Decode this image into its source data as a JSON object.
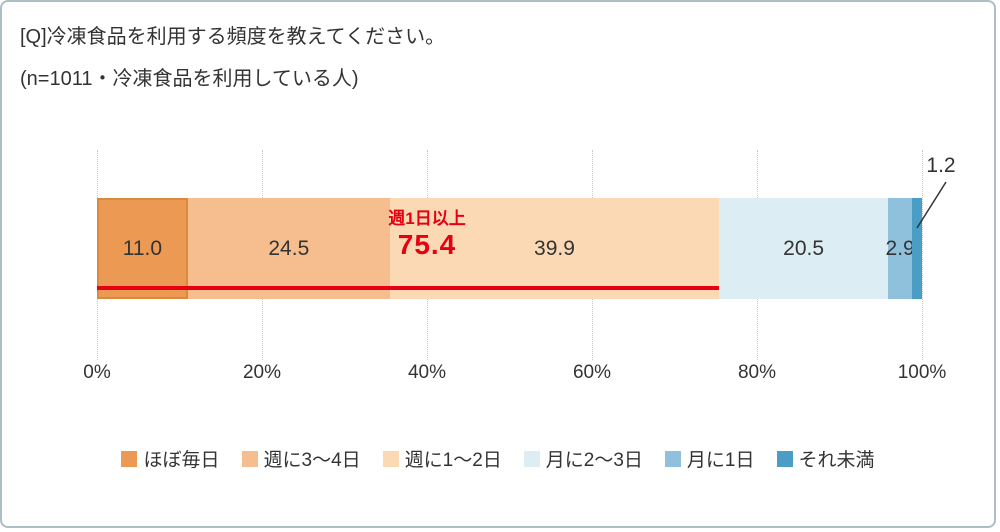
{
  "page": {
    "title": "[Q]冷凍食品を利用する頻度を教えてください。",
    "subtitle": "(n=1011・冷凍食品を利用している人)"
  },
  "chart_data": {
    "type": "bar",
    "orientation": "horizontal-stacked",
    "title": "[Q]冷凍食品を利用する頻度を教えてください。",
    "subtitle": "(n=1011・冷凍食品を利用している人)",
    "categories": [
      "ほぼ毎日",
      "週に3〜4日",
      "週に1〜2日",
      "月に2〜3日",
      "月に1日",
      "それ未満"
    ],
    "values": [
      11.0,
      24.5,
      39.9,
      20.5,
      2.9,
      1.2
    ],
    "labels": [
      "11.0",
      "24.5",
      "39.9",
      "20.5",
      "2.9",
      "1.2"
    ],
    "colors": [
      "#ec9a53",
      "#f6be8e",
      "#fbd9b5",
      "#dcedf4",
      "#8fc1dc",
      "#4a9ec5"
    ],
    "x_ticks": [
      "0%",
      "20%",
      "40%",
      "60%",
      "80%",
      "100%"
    ],
    "xlim": [
      0,
      100
    ],
    "grid": "dotted-vertical",
    "legend_position": "bottom",
    "annotation": {
      "label": "週1日以上",
      "value": "75.4",
      "span_percent": 75.4,
      "color": "#e60012"
    },
    "outside_label": {
      "text": "1.2",
      "segment_index": 5
    }
  }
}
